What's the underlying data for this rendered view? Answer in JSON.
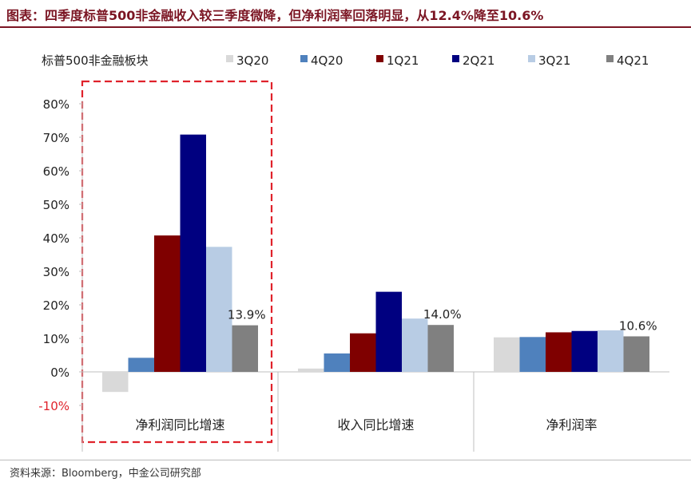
{
  "title": "图表：四季度标普500非金融收入较三季度微降，但净利润率回落明显，从12.4%降至10.6%",
  "source": "资料来源：Bloomberg，中金公司研究部",
  "colors": {
    "title": "#7b1523",
    "highlight_box": "#e0222b",
    "negative_tick": "#e0222b"
  },
  "chart_data": {
    "type": "bar",
    "panel_label": "标普500非金融板块",
    "categories": [
      "净利润同比增速",
      "收入同比增速",
      "净利润率"
    ],
    "series": [
      {
        "name": "3Q20",
        "color": "#d9d9d9",
        "values": [
          -6.0,
          1.0,
          10.3
        ]
      },
      {
        "name": "4Q20",
        "color": "#4f81bd",
        "values": [
          4.2,
          5.5,
          10.4
        ]
      },
      {
        "name": "1Q21",
        "color": "#7f0000",
        "values": [
          40.7,
          11.5,
          11.8
        ]
      },
      {
        "name": "2Q21",
        "color": "#000080",
        "values": [
          70.8,
          23.9,
          12.2
        ]
      },
      {
        "name": "3Q21",
        "color": "#b8cce4",
        "values": [
          37.3,
          15.9,
          12.4
        ]
      },
      {
        "name": "4Q21",
        "color": "#808080",
        "values": [
          13.9,
          14.0,
          10.6
        ]
      }
    ],
    "data_labels": [
      {
        "category": 0,
        "series": "4Q21",
        "text": "13.9%"
      },
      {
        "category": 1,
        "series": "4Q21",
        "text": "14.0%"
      },
      {
        "category": 2,
        "series": "4Q21",
        "text": "10.6%"
      }
    ],
    "yticks": [
      -10,
      0,
      10,
      20,
      30,
      40,
      50,
      60,
      70,
      80
    ],
    "ytick_labels": [
      "-10%",
      "0%",
      "10%",
      "20%",
      "30%",
      "40%",
      "50%",
      "60%",
      "70%",
      "80%"
    ],
    "ylim": [
      -10,
      80
    ],
    "grid": false,
    "legend_position": "top",
    "highlight_category": 0
  }
}
